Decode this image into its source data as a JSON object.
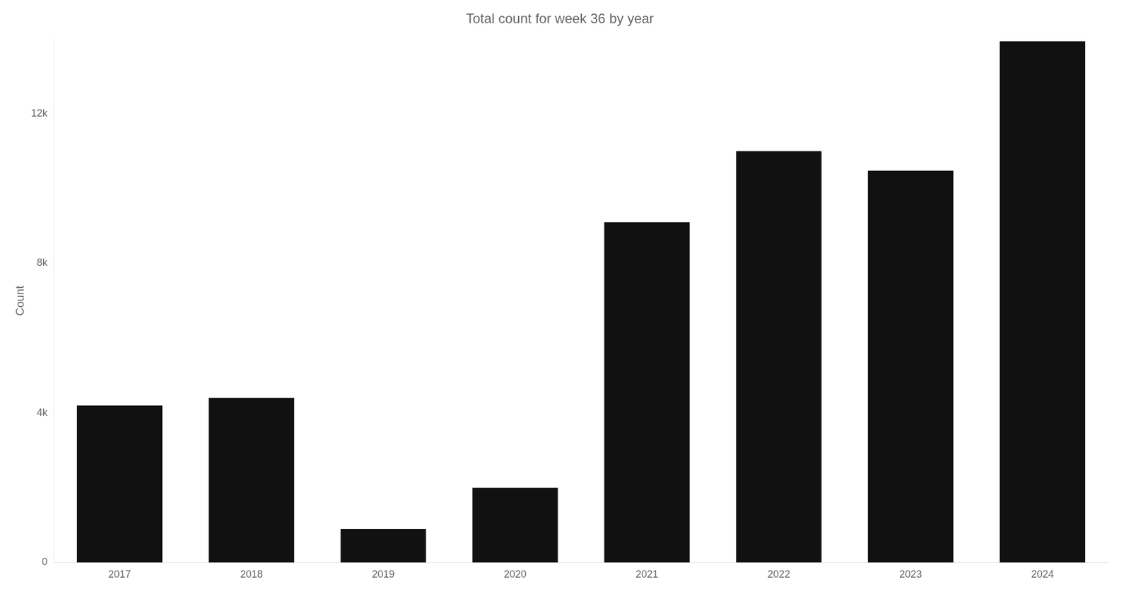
{
  "chart_data": {
    "type": "bar",
    "title": "Total count for week 36 by year",
    "categories": [
      "2017",
      "2018",
      "2019",
      "2020",
      "2021",
      "2022",
      "2023",
      "2024"
    ],
    "values": [
      4200,
      4400,
      900,
      2000,
      9100,
      11000,
      10478,
      13935
    ],
    "color": "#111111",
    "ylabel": "Count",
    "ylim": [
      0,
      14000
    ],
    "yticks": [
      0,
      {
        "value": 4000,
        "label": "4k"
      },
      {
        "value": 8000,
        "label": "8k"
      },
      {
        "value": 12000,
        "label": "12k"
      }
    ],
    "grid": false
  }
}
